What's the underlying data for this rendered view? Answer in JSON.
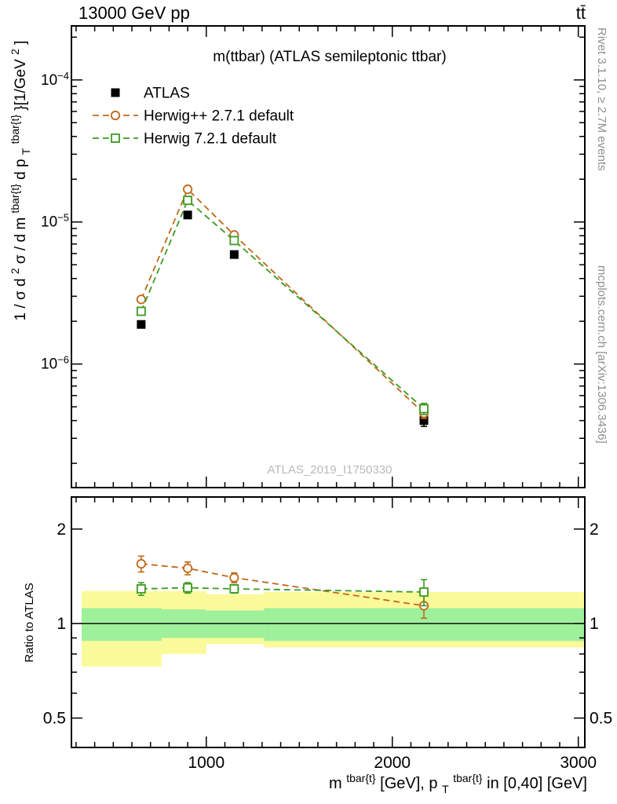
{
  "header": {
    "left": "13000 GeV pp",
    "right": "tt̄"
  },
  "panel_title": "m(ttbar) (ATLAS semileptonic ttbar)",
  "watermark": "ATLAS_2019_I1750330",
  "side_notes": {
    "top": "Rivet 3.1.10, ≥ 2.7M events",
    "bottom": "mcplots.cern.ch [arXiv:1306.3436]"
  },
  "axis_labels": {
    "ratio_y": "Ratio to ATLAS",
    "y_main": {
      "p1": "1 / σ d",
      "p2": "2",
      "p3": "σ / d m",
      "p4": "tbar{t}",
      "p5": " d p",
      "p6": "T",
      "p7": "tbar{t}",
      "p8": "}[1/GeV",
      "p9": "2",
      "p10": "]"
    },
    "x": {
      "p1": "m",
      "p2": "tbar{t}",
      "p3": " [GeV], p",
      "p4": "T",
      "p5": "tbar{t}",
      "p6": " in [0,40] [GeV]"
    }
  },
  "legend": [
    {
      "id": "atlas",
      "label": "ATLAS",
      "marker": "filled-square",
      "color": "#000000",
      "line": "none"
    },
    {
      "id": "herwigpp",
      "label": "Herwig++ 2.7.1 default",
      "marker": "open-circle",
      "color": "#c06818",
      "line": "dashed"
    },
    {
      "id": "herwig7",
      "label": "Herwig 7.2.1 default",
      "marker": "open-square",
      "color": "#3d9a20",
      "line": "dashed"
    }
  ],
  "colors": {
    "atlas": "#000000",
    "herwigpp": "#c06818",
    "herwig7": "#3d9a20",
    "band_outer": "#fbfa9a",
    "band_inner": "#9ef09b"
  },
  "chart_data": [
    {
      "type": "scatter",
      "title": "m(ttbar) (ATLAS semileptonic ttbar)",
      "xlabel": "m^tbar{t} [GeV], p_T^tbar{t} in [0,40] [GeV]",
      "ylabel": "1/σ d²σ / d m^tbar{t} d p_T^tbar{t} [1/GeV²]",
      "x_scale": "linear",
      "y_scale": "log",
      "xlim": [
        275,
        3035
      ],
      "ylim": [
        1.35e-07,
        0.00024
      ],
      "x": [
        650,
        900,
        1150,
        2170
      ],
      "x_ticks": [
        {
          "value": 1000,
          "label": "1000"
        },
        {
          "value": 2000,
          "label": "2000"
        },
        {
          "value": 3000,
          "label": "3000"
        }
      ],
      "x_minor_step": 100,
      "y_ticks": [
        {
          "value": 0.0001,
          "base": "10",
          "exp": "−4"
        },
        {
          "value": 1e-05,
          "base": "10",
          "exp": "−5"
        },
        {
          "value": 1e-06,
          "base": "10",
          "exp": "−6"
        }
      ],
      "series": [
        {
          "id": "atlas",
          "name": "ATLAS",
          "marker": "filled-square",
          "color": "#000000",
          "line": "none",
          "y": [
            1.9e-06,
            1.12e-05,
            5.9e-06,
            4e-07
          ],
          "yerr_rel": [
            0.05,
            0.04,
            0.045,
            0.09
          ]
        },
        {
          "id": "herwigpp",
          "name": "Herwig++ 2.7.1 default",
          "marker": "open-circle",
          "color": "#c06818",
          "line": "dashed",
          "y": [
            2.85e-06,
            1.7e-05,
            8.1e-06,
            4.5e-07
          ],
          "yerr_rel": [
            0.04,
            0.025,
            0.035,
            0.08
          ]
        },
        {
          "id": "herwig7",
          "name": "Herwig 7.2.1 default",
          "marker": "open-square",
          "color": "#3d9a20",
          "line": "dashed",
          "y": [
            2.35e-06,
            1.42e-05,
            7.4e-06,
            4.85e-07
          ],
          "yerr_rel": [
            0.05,
            0.03,
            0.04,
            0.09
          ]
        }
      ]
    },
    {
      "type": "ratio",
      "ylabel": "Ratio to ATLAS",
      "y_scale": "log",
      "ylim": [
        0.403,
        2.53
      ],
      "ref_line": 1,
      "x": [
        650,
        900,
        1150,
        2170
      ],
      "y_ticks": [
        {
          "value": 2,
          "label": "2"
        },
        {
          "value": 1,
          "label": "1"
        },
        {
          "value": 0.5,
          "label": "0.5"
        }
      ],
      "y_minor_ticks": [
        0.6,
        0.7,
        0.8,
        0.9
      ],
      "bands": {
        "outer": {
          "color": "#fbfa9a",
          "segments": [
            {
              "x1": 330,
              "x2": 760,
              "lo": 0.73,
              "hi": 1.27
            },
            {
              "x1": 760,
              "x2": 1000,
              "lo": 0.8,
              "hi": 1.27
            },
            {
              "x1": 1000,
              "x2": 1310,
              "lo": 0.86,
              "hi": 1.24
            },
            {
              "x1": 1310,
              "x2": 3035,
              "lo": 0.84,
              "hi": 1.26
            }
          ]
        },
        "inner": {
          "color": "#9ef09b",
          "segments": [
            {
              "x1": 330,
              "x2": 760,
              "lo": 0.88,
              "hi": 1.12
            },
            {
              "x1": 760,
              "x2": 1000,
              "lo": 0.9,
              "hi": 1.11
            },
            {
              "x1": 1000,
              "x2": 1310,
              "lo": 0.9,
              "hi": 1.1
            },
            {
              "x1": 1310,
              "x2": 3035,
              "lo": 0.88,
              "hi": 1.12
            }
          ]
        }
      },
      "series": [
        {
          "id": "herwigpp",
          "name": "Herwig++ 2.7.1 default",
          "marker": "open-circle",
          "color": "#c06818",
          "line": "dashed",
          "y": [
            1.55,
            1.5,
            1.4,
            1.14
          ],
          "yerr": [
            0.09,
            0.07,
            0.05,
            0.1
          ]
        },
        {
          "id": "herwig7",
          "name": "Herwig 7.2.1 default",
          "marker": "open-square",
          "color": "#3d9a20",
          "line": "dashed",
          "y": [
            1.29,
            1.3,
            1.29,
            1.26
          ],
          "yerr": [
            0.06,
            0.05,
            0.04,
            0.12
          ]
        }
      ]
    }
  ]
}
